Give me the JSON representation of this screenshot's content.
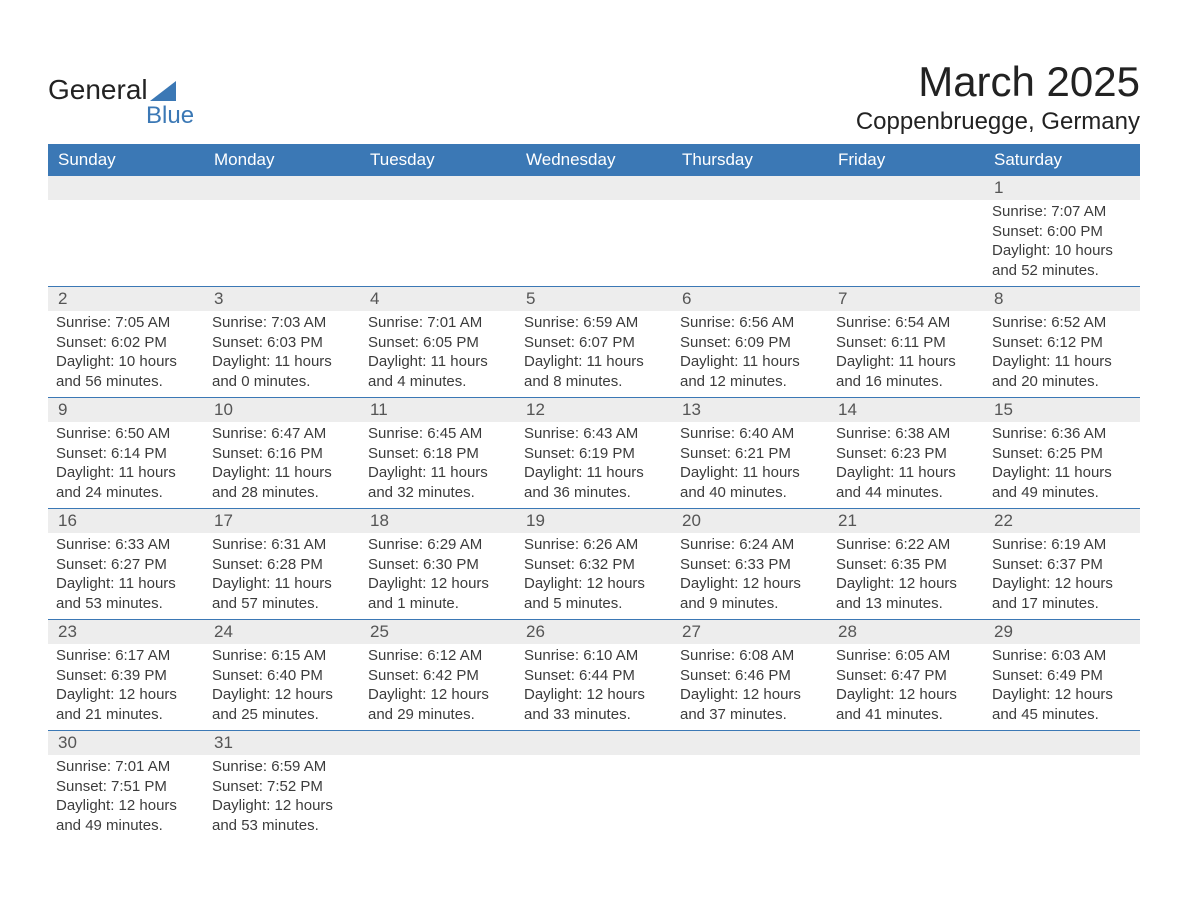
{
  "brand": {
    "name_a": "General",
    "name_b": "Blue",
    "accent": "#3b78b5"
  },
  "title": "March 2025",
  "location": "Coppenbruegge, Germany",
  "colors": {
    "header_bg": "#3b78b5",
    "header_text": "#ffffff",
    "daynum_bg": "#ededed",
    "row_divider": "#3b78b5",
    "body_text": "#3c3c3c",
    "background": "#ffffff"
  },
  "weekdays": [
    "Sunday",
    "Monday",
    "Tuesday",
    "Wednesday",
    "Thursday",
    "Friday",
    "Saturday"
  ],
  "weeks": [
    {
      "nums": [
        "",
        "",
        "",
        "",
        "",
        "",
        "1"
      ],
      "details": [
        {
          "sunrise": "",
          "sunset": "",
          "daylight": ""
        },
        {
          "sunrise": "",
          "sunset": "",
          "daylight": ""
        },
        {
          "sunrise": "",
          "sunset": "",
          "daylight": ""
        },
        {
          "sunrise": "",
          "sunset": "",
          "daylight": ""
        },
        {
          "sunrise": "",
          "sunset": "",
          "daylight": ""
        },
        {
          "sunrise": "",
          "sunset": "",
          "daylight": ""
        },
        {
          "sunrise": "Sunrise: 7:07 AM",
          "sunset": "Sunset: 6:00 PM",
          "daylight": "Daylight: 10 hours and 52 minutes."
        }
      ]
    },
    {
      "nums": [
        "2",
        "3",
        "4",
        "5",
        "6",
        "7",
        "8"
      ],
      "details": [
        {
          "sunrise": "Sunrise: 7:05 AM",
          "sunset": "Sunset: 6:02 PM",
          "daylight": "Daylight: 10 hours and 56 minutes."
        },
        {
          "sunrise": "Sunrise: 7:03 AM",
          "sunset": "Sunset: 6:03 PM",
          "daylight": "Daylight: 11 hours and 0 minutes."
        },
        {
          "sunrise": "Sunrise: 7:01 AM",
          "sunset": "Sunset: 6:05 PM",
          "daylight": "Daylight: 11 hours and 4 minutes."
        },
        {
          "sunrise": "Sunrise: 6:59 AM",
          "sunset": "Sunset: 6:07 PM",
          "daylight": "Daylight: 11 hours and 8 minutes."
        },
        {
          "sunrise": "Sunrise: 6:56 AM",
          "sunset": "Sunset: 6:09 PM",
          "daylight": "Daylight: 11 hours and 12 minutes."
        },
        {
          "sunrise": "Sunrise: 6:54 AM",
          "sunset": "Sunset: 6:11 PM",
          "daylight": "Daylight: 11 hours and 16 minutes."
        },
        {
          "sunrise": "Sunrise: 6:52 AM",
          "sunset": "Sunset: 6:12 PM",
          "daylight": "Daylight: 11 hours and 20 minutes."
        }
      ]
    },
    {
      "nums": [
        "9",
        "10",
        "11",
        "12",
        "13",
        "14",
        "15"
      ],
      "details": [
        {
          "sunrise": "Sunrise: 6:50 AM",
          "sunset": "Sunset: 6:14 PM",
          "daylight": "Daylight: 11 hours and 24 minutes."
        },
        {
          "sunrise": "Sunrise: 6:47 AM",
          "sunset": "Sunset: 6:16 PM",
          "daylight": "Daylight: 11 hours and 28 minutes."
        },
        {
          "sunrise": "Sunrise: 6:45 AM",
          "sunset": "Sunset: 6:18 PM",
          "daylight": "Daylight: 11 hours and 32 minutes."
        },
        {
          "sunrise": "Sunrise: 6:43 AM",
          "sunset": "Sunset: 6:19 PM",
          "daylight": "Daylight: 11 hours and 36 minutes."
        },
        {
          "sunrise": "Sunrise: 6:40 AM",
          "sunset": "Sunset: 6:21 PM",
          "daylight": "Daylight: 11 hours and 40 minutes."
        },
        {
          "sunrise": "Sunrise: 6:38 AM",
          "sunset": "Sunset: 6:23 PM",
          "daylight": "Daylight: 11 hours and 44 minutes."
        },
        {
          "sunrise": "Sunrise: 6:36 AM",
          "sunset": "Sunset: 6:25 PM",
          "daylight": "Daylight: 11 hours and 49 minutes."
        }
      ]
    },
    {
      "nums": [
        "16",
        "17",
        "18",
        "19",
        "20",
        "21",
        "22"
      ],
      "details": [
        {
          "sunrise": "Sunrise: 6:33 AM",
          "sunset": "Sunset: 6:27 PM",
          "daylight": "Daylight: 11 hours and 53 minutes."
        },
        {
          "sunrise": "Sunrise: 6:31 AM",
          "sunset": "Sunset: 6:28 PM",
          "daylight": "Daylight: 11 hours and 57 minutes."
        },
        {
          "sunrise": "Sunrise: 6:29 AM",
          "sunset": "Sunset: 6:30 PM",
          "daylight": "Daylight: 12 hours and 1 minute."
        },
        {
          "sunrise": "Sunrise: 6:26 AM",
          "sunset": "Sunset: 6:32 PM",
          "daylight": "Daylight: 12 hours and 5 minutes."
        },
        {
          "sunrise": "Sunrise: 6:24 AM",
          "sunset": "Sunset: 6:33 PM",
          "daylight": "Daylight: 12 hours and 9 minutes."
        },
        {
          "sunrise": "Sunrise: 6:22 AM",
          "sunset": "Sunset: 6:35 PM",
          "daylight": "Daylight: 12 hours and 13 minutes."
        },
        {
          "sunrise": "Sunrise: 6:19 AM",
          "sunset": "Sunset: 6:37 PM",
          "daylight": "Daylight: 12 hours and 17 minutes."
        }
      ]
    },
    {
      "nums": [
        "23",
        "24",
        "25",
        "26",
        "27",
        "28",
        "29"
      ],
      "details": [
        {
          "sunrise": "Sunrise: 6:17 AM",
          "sunset": "Sunset: 6:39 PM",
          "daylight": "Daylight: 12 hours and 21 minutes."
        },
        {
          "sunrise": "Sunrise: 6:15 AM",
          "sunset": "Sunset: 6:40 PM",
          "daylight": "Daylight: 12 hours and 25 minutes."
        },
        {
          "sunrise": "Sunrise: 6:12 AM",
          "sunset": "Sunset: 6:42 PM",
          "daylight": "Daylight: 12 hours and 29 minutes."
        },
        {
          "sunrise": "Sunrise: 6:10 AM",
          "sunset": "Sunset: 6:44 PM",
          "daylight": "Daylight: 12 hours and 33 minutes."
        },
        {
          "sunrise": "Sunrise: 6:08 AM",
          "sunset": "Sunset: 6:46 PM",
          "daylight": "Daylight: 12 hours and 37 minutes."
        },
        {
          "sunrise": "Sunrise: 6:05 AM",
          "sunset": "Sunset: 6:47 PM",
          "daylight": "Daylight: 12 hours and 41 minutes."
        },
        {
          "sunrise": "Sunrise: 6:03 AM",
          "sunset": "Sunset: 6:49 PM",
          "daylight": "Daylight: 12 hours and 45 minutes."
        }
      ]
    },
    {
      "nums": [
        "30",
        "31",
        "",
        "",
        "",
        "",
        ""
      ],
      "details": [
        {
          "sunrise": "Sunrise: 7:01 AM",
          "sunset": "Sunset: 7:51 PM",
          "daylight": "Daylight: 12 hours and 49 minutes."
        },
        {
          "sunrise": "Sunrise: 6:59 AM",
          "sunset": "Sunset: 7:52 PM",
          "daylight": "Daylight: 12 hours and 53 minutes."
        },
        {
          "sunrise": "",
          "sunset": "",
          "daylight": ""
        },
        {
          "sunrise": "",
          "sunset": "",
          "daylight": ""
        },
        {
          "sunrise": "",
          "sunset": "",
          "daylight": ""
        },
        {
          "sunrise": "",
          "sunset": "",
          "daylight": ""
        },
        {
          "sunrise": "",
          "sunset": "",
          "daylight": ""
        }
      ]
    }
  ]
}
